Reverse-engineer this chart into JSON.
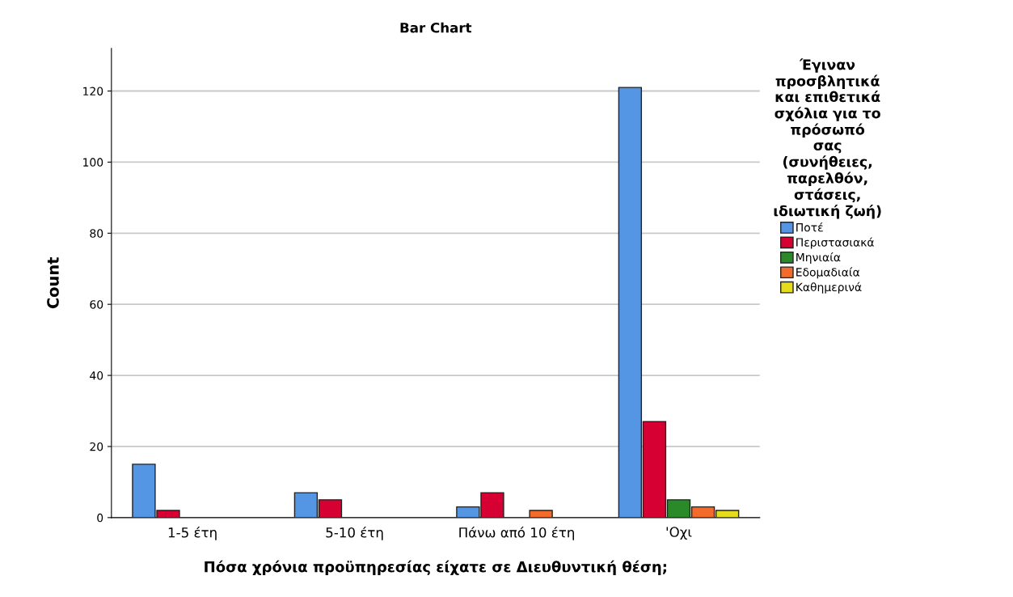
{
  "chart_data": {
    "type": "bar",
    "title": "Bar Chart",
    "xlabel": "Πόσα χρόνια προϋπηρεσίας είχατε σε Διευθυντική θέση;",
    "ylabel": "Count",
    "legend_title": "Έγιναν\nπροσβλητικά\nκαι επιθετικά\nσχόλια για το\nπρόσωπό\nσας\n(συνήθειες,\nπαρελθόν,\nστάσεις,\nιδιωτική ζωή)",
    "categories": [
      "1-5 έτη",
      "5-10 έτη",
      "Πάνω από 10 έτη",
      "'Οχι"
    ],
    "series": [
      {
        "name": "Ποτέ",
        "color": "#5495e4",
        "values": [
          15,
          7,
          3,
          121
        ]
      },
      {
        "name": "Περιστασιακά",
        "color": "#d60032",
        "values": [
          2,
          5,
          7,
          27
        ]
      },
      {
        "name": "Μηνιαία",
        "color": "#2a8a2a",
        "values": [
          null,
          null,
          null,
          5
        ]
      },
      {
        "name": "Εδομαδιαία",
        "color": "#f26b2a",
        "values": [
          null,
          null,
          2,
          3
        ]
      },
      {
        "name": "Καθημερινά",
        "color": "#e5dc1c",
        "values": [
          null,
          null,
          null,
          2
        ]
      }
    ],
    "ylim": [
      0,
      132
    ],
    "yticks": [
      0,
      20,
      40,
      60,
      80,
      100,
      120
    ],
    "grid": "y",
    "legend": "right"
  }
}
